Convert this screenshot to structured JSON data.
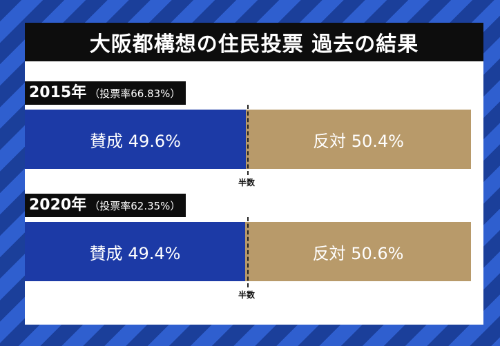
{
  "title": "大阪都構想の住民投票 過去の結果",
  "chart_data": {
    "type": "bar",
    "orientation": "horizontal-stacked",
    "rows": [
      {
        "year": "2015年",
        "turnout": "（投票率66.83%）",
        "yes_label": "賛成 49.6%",
        "no_label": "反対 50.4%",
        "yes": 49.6,
        "no": 50.4
      },
      {
        "year": "2020年",
        "turnout": "（投票率62.35%）",
        "yes_label": "賛成 49.4%",
        "no_label": "反対 50.6%",
        "yes": 49.4,
        "no": 50.6
      }
    ],
    "marker_label": "半数",
    "colors": {
      "yes": "#1c3aa6",
      "no": "#b89a6a"
    }
  }
}
